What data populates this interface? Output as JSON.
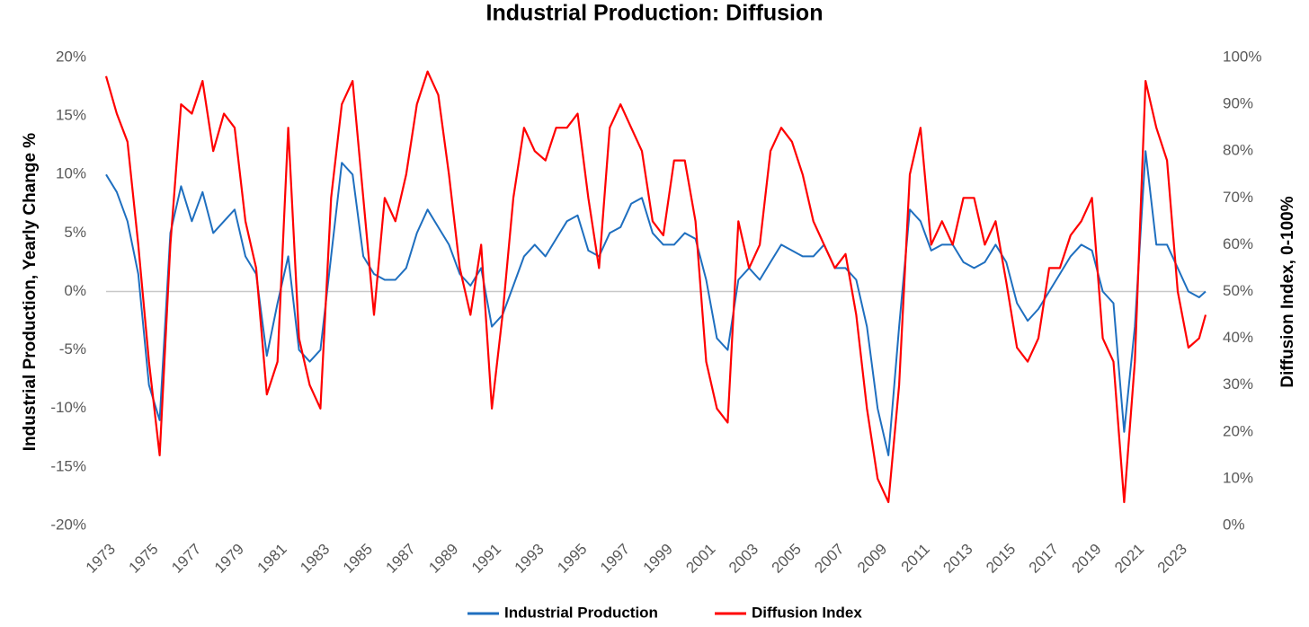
{
  "chart_data": {
    "type": "line",
    "title": "Industrial Production: Diffusion",
    "y_label": "Industrial Production,  Yearly Change %",
    "y2_label": "Diffusion Index, 0-100%",
    "x": [
      1973.0,
      1973.5,
      1974.0,
      1974.5,
      1975.0,
      1975.5,
      1976.0,
      1976.5,
      1977.0,
      1977.5,
      1978.0,
      1978.5,
      1979.0,
      1979.5,
      1980.0,
      1980.5,
      1981.0,
      1981.5,
      1982.0,
      1982.5,
      1983.0,
      1983.5,
      1984.0,
      1984.5,
      1985.0,
      1985.5,
      1986.0,
      1986.5,
      1987.0,
      1987.5,
      1988.0,
      1988.5,
      1989.0,
      1989.5,
      1990.0,
      1990.5,
      1991.0,
      1991.5,
      1992.0,
      1992.5,
      1993.0,
      1993.5,
      1994.0,
      1994.5,
      1995.0,
      1995.5,
      1996.0,
      1996.5,
      1997.0,
      1997.5,
      1998.0,
      1998.5,
      1999.0,
      1999.5,
      2000.0,
      2000.5,
      2001.0,
      2001.5,
      2002.0,
      2002.5,
      2003.0,
      2003.5,
      2004.0,
      2004.5,
      2005.0,
      2005.5,
      2006.0,
      2006.5,
      2007.0,
      2007.5,
      2008.0,
      2008.5,
      2009.0,
      2009.5,
      2010.0,
      2010.5,
      2011.0,
      2011.5,
      2012.0,
      2012.5,
      2013.0,
      2013.5,
      2014.0,
      2014.5,
      2015.0,
      2015.5,
      2016.0,
      2016.5,
      2017.0,
      2017.5,
      2018.0,
      2018.5,
      2019.0,
      2019.5,
      2020.0,
      2020.5,
      2021.0,
      2021.5,
      2022.0,
      2022.5,
      2023.0,
      2023.5,
      2024.0,
      2024.3
    ],
    "series": [
      {
        "name": "Industrial Production",
        "color": "#1f6fbf",
        "axis": "y",
        "values": [
          10,
          8.5,
          6,
          1.5,
          -8,
          -11,
          5,
          9,
          6,
          8.5,
          5,
          6,
          7,
          3,
          1.5,
          -5.5,
          -1,
          3,
          -5,
          -6,
          -5,
          3,
          11,
          10,
          3,
          1.5,
          1,
          1,
          2,
          5,
          7,
          5.5,
          4,
          1.5,
          0.5,
          2,
          -3,
          -2,
          0.5,
          3,
          4,
          3,
          4.5,
          6,
          6.5,
          3.5,
          3,
          5,
          5.5,
          7.5,
          8,
          5,
          4,
          4,
          5,
          4.5,
          1,
          -4,
          -5,
          1,
          2,
          1,
          2.5,
          4,
          3.5,
          3,
          3,
          4,
          2,
          2,
          1,
          -3,
          -10,
          -14,
          -3,
          7,
          6,
          3.5,
          4,
          4,
          2.5,
          2,
          2.5,
          4,
          2.5,
          -1,
          -2.5,
          -1.5,
          0,
          1.5,
          3,
          4,
          3.5,
          0,
          -1,
          -12,
          -3,
          12,
          4,
          4,
          2,
          0,
          -0.5,
          0
        ]
      },
      {
        "name": "Diffusion Index",
        "color": "#ff0000",
        "axis": "y2",
        "values": [
          96,
          88,
          82,
          60,
          35,
          15,
          60,
          90,
          88,
          95,
          80,
          88,
          85,
          65,
          55,
          28,
          35,
          85,
          40,
          30,
          25,
          70,
          90,
          95,
          70,
          45,
          70,
          65,
          75,
          90,
          97,
          92,
          75,
          55,
          45,
          60,
          25,
          45,
          70,
          85,
          80,
          78,
          85,
          85,
          88,
          70,
          55,
          85,
          90,
          85,
          80,
          65,
          62,
          78,
          78,
          65,
          35,
          25,
          22,
          65,
          55,
          60,
          80,
          85,
          82,
          75,
          65,
          60,
          55,
          58,
          45,
          25,
          10,
          5,
          30,
          75,
          85,
          60,
          65,
          60,
          70,
          70,
          60,
          65,
          52,
          38,
          35,
          40,
          55,
          55,
          62,
          65,
          70,
          40,
          35,
          5,
          35,
          95,
          85,
          78,
          50,
          38,
          40,
          45
        ]
      }
    ],
    "xlim": [
      1973,
      2024.3
    ],
    "xticks": [
      1973,
      1975,
      1977,
      1979,
      1981,
      1983,
      1985,
      1987,
      1989,
      1991,
      1993,
      1995,
      1997,
      1999,
      2001,
      2003,
      2005,
      2007,
      2009,
      2011,
      2013,
      2015,
      2017,
      2019,
      2021,
      2023
    ],
    "ylim": [
      -20,
      20
    ],
    "yticks": [
      {
        "value": -20,
        "label": "-20%"
      },
      {
        "value": -15,
        "label": "-15%"
      },
      {
        "value": -10,
        "label": "-10%"
      },
      {
        "value": -5,
        "label": "-5%"
      },
      {
        "value": 0,
        "label": "0%"
      },
      {
        "value": 5,
        "label": "5%"
      },
      {
        "value": 10,
        "label": "10%"
      },
      {
        "value": 15,
        "label": "15%"
      },
      {
        "value": 20,
        "label": "20%"
      }
    ],
    "y2lim": [
      0,
      100
    ],
    "y2ticks": [
      {
        "value": 0,
        "label": "0%"
      },
      {
        "value": 10,
        "label": "10%"
      },
      {
        "value": 20,
        "label": "20%"
      },
      {
        "value": 30,
        "label": "30%"
      },
      {
        "value": 40,
        "label": "40%"
      },
      {
        "value": 50,
        "label": "50%"
      },
      {
        "value": 60,
        "label": "60%"
      },
      {
        "value": 70,
        "label": "70%"
      },
      {
        "value": 80,
        "label": "80%"
      },
      {
        "value": 90,
        "label": "90%"
      },
      {
        "value": 100,
        "label": "100%"
      }
    ],
    "zero_line": true,
    "legend": "bottom"
  }
}
